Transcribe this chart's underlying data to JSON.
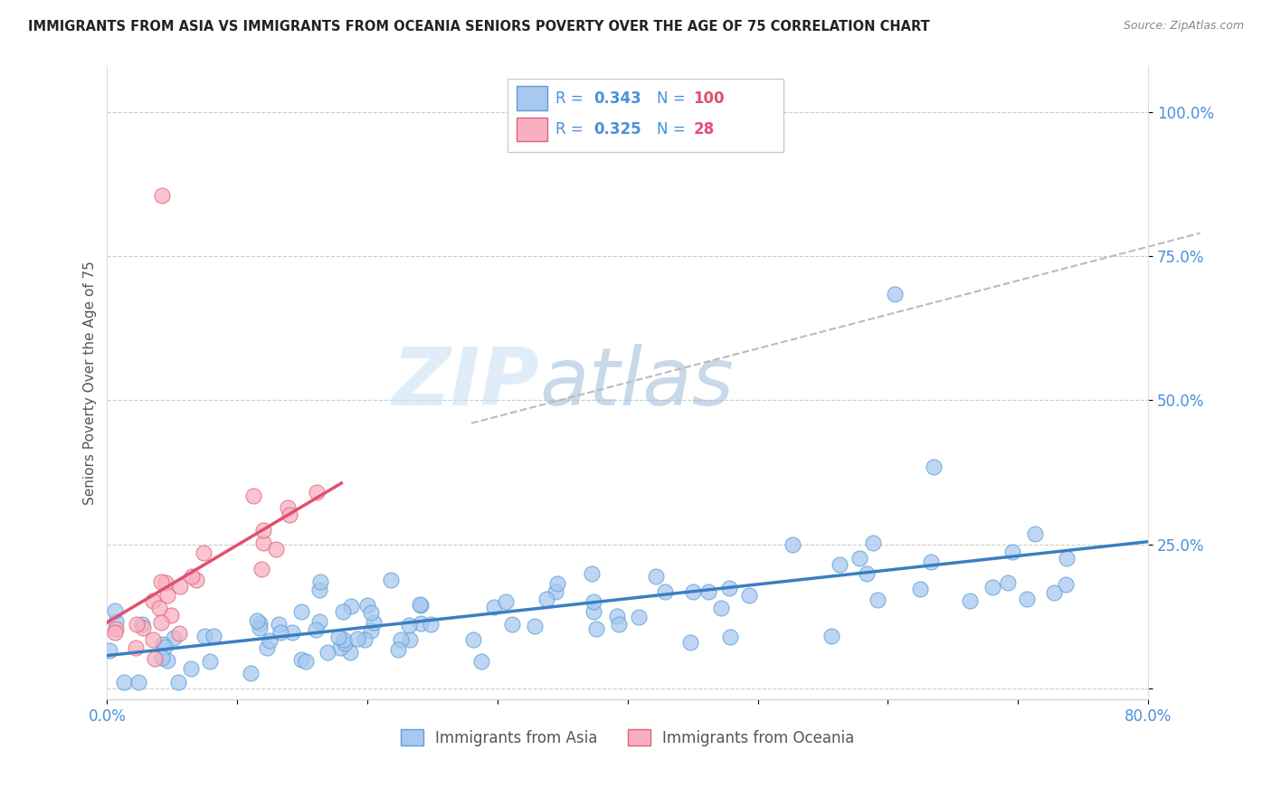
{
  "title": "IMMIGRANTS FROM ASIA VS IMMIGRANTS FROM OCEANIA SENIORS POVERTY OVER THE AGE OF 75 CORRELATION CHART",
  "source": "Source: ZipAtlas.com",
  "ylabel": "Seniors Poverty Over the Age of 75",
  "xlim": [
    0.0,
    0.8
  ],
  "ylim": [
    -0.02,
    1.08
  ],
  "ytick_positions": [
    0.0,
    0.25,
    0.5,
    0.75,
    1.0
  ],
  "ytick_labels": [
    "",
    "25.0%",
    "50.0%",
    "75.0%",
    "100.0%"
  ],
  "asia_R": 0.343,
  "asia_N": 100,
  "oceania_R": 0.325,
  "oceania_N": 28,
  "asia_color": "#a8c8f0",
  "oceania_color": "#f8b0c0",
  "asia_edge_color": "#5a9fd4",
  "oceania_edge_color": "#e06080",
  "asia_trend_color": "#3a7fc1",
  "oceania_trend_color": "#e05070",
  "dashed_color": "#bbbbbb",
  "watermark_color": "#d0e8f8",
  "background_color": "#ffffff",
  "grid_color": "#cccccc",
  "title_color": "#222222",
  "ylabel_color": "#555555",
  "tick_label_color": "#4a90d9",
  "legend_blue_color": "#4a90d9",
  "legend_red_color": "#e05070",
  "legend_text_color": "#333333"
}
